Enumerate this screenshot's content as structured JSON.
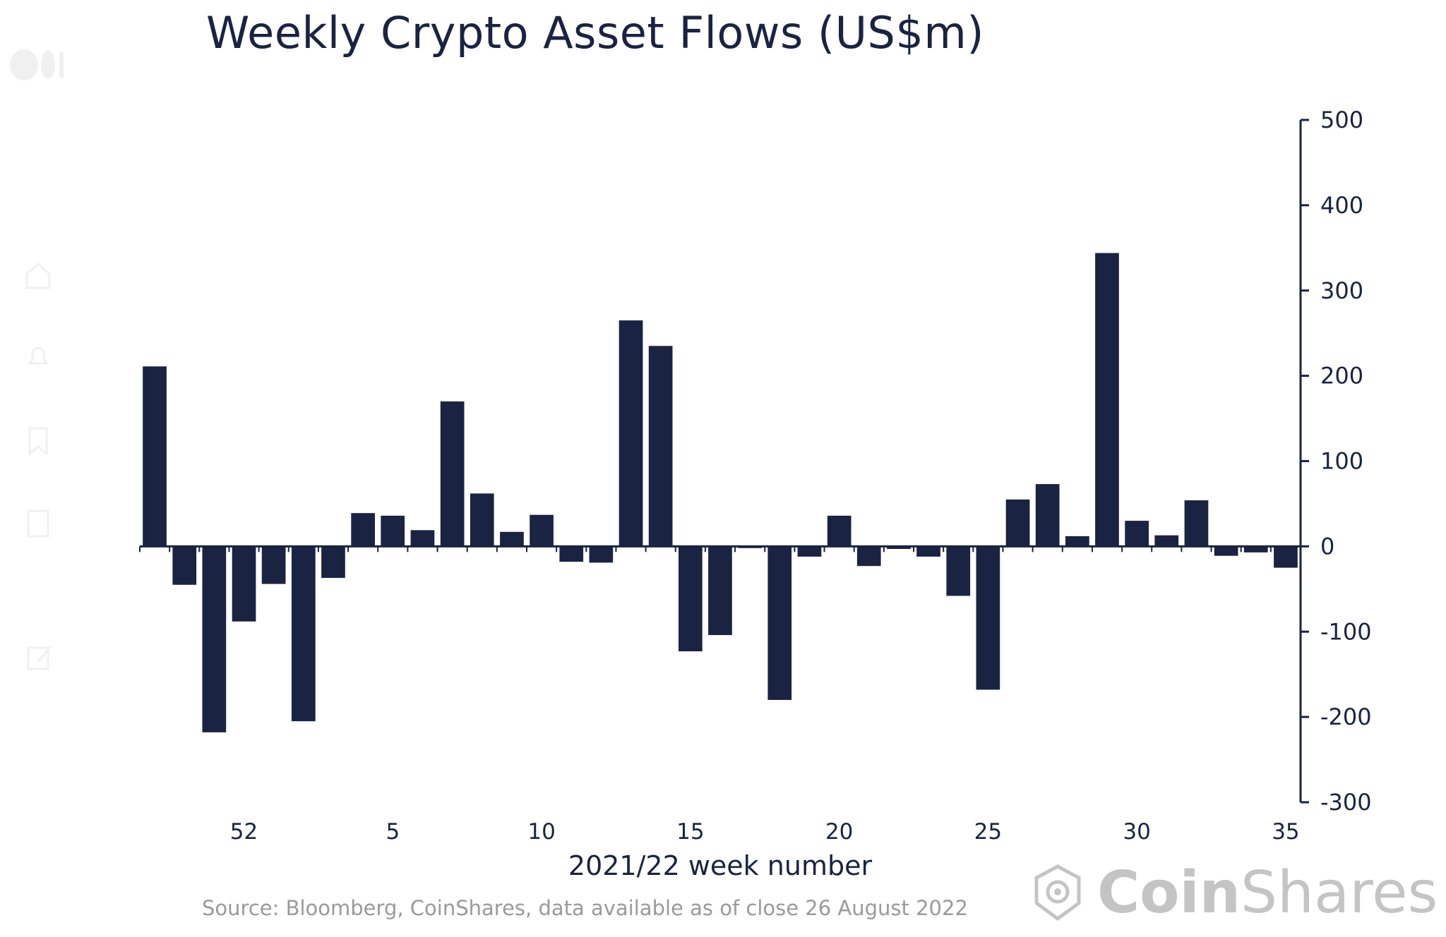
{
  "chart_data": {
    "type": "bar",
    "title": "Weekly Crypto Asset Flows (US$m)",
    "xlabel": "2021/22 week number",
    "ylabel": "",
    "ylim": [
      -300,
      500
    ],
    "yticks": [
      500,
      400,
      300,
      200,
      100,
      0,
      -100,
      -200,
      -300
    ],
    "ytick_labels": [
      "500",
      "400",
      "300",
      "200",
      "100",
      "0",
      "-100",
      "-200",
      "-300"
    ],
    "y_axis_side": "right",
    "grid": false,
    "legend": "none",
    "bar_color": "#1a2342",
    "categories": [
      "49",
      "50",
      "51",
      "52",
      "1",
      "2",
      "3",
      "4",
      "5",
      "6",
      "7",
      "8",
      "9",
      "10",
      "11",
      "12",
      "13",
      "14",
      "15",
      "16",
      "17",
      "18",
      "19",
      "20",
      "21",
      "22",
      "23",
      "24",
      "25",
      "26",
      "27",
      "28",
      "29",
      "30",
      "31",
      "32",
      "33",
      "34",
      "35"
    ],
    "xtick_labels": [
      {
        "category": "52",
        "label": "52"
      },
      {
        "category": "5",
        "label": "5"
      },
      {
        "category": "10",
        "label": "10"
      },
      {
        "category": "15",
        "label": "15"
      },
      {
        "category": "20",
        "label": "20"
      },
      {
        "category": "25",
        "label": "25"
      },
      {
        "category": "30",
        "label": "30"
      },
      {
        "category": "35",
        "label": "35"
      }
    ],
    "values": [
      211,
      -45,
      -218,
      -88,
      -44,
      -205,
      -37,
      39,
      36,
      19,
      170,
      62,
      17,
      37,
      -18,
      -19,
      265,
      235,
      -123,
      -104,
      -2,
      -180,
      -12,
      36,
      -23,
      -3,
      -12,
      -58,
      -168,
      55,
      73,
      12,
      344,
      30,
      13,
      54,
      -11,
      -7,
      -25
    ]
  },
  "source_note": "Source: Bloomberg, CoinShares, data available as of close 26 August 2022",
  "brand": {
    "name_bold": "Coin",
    "name_regular": "Shares"
  }
}
